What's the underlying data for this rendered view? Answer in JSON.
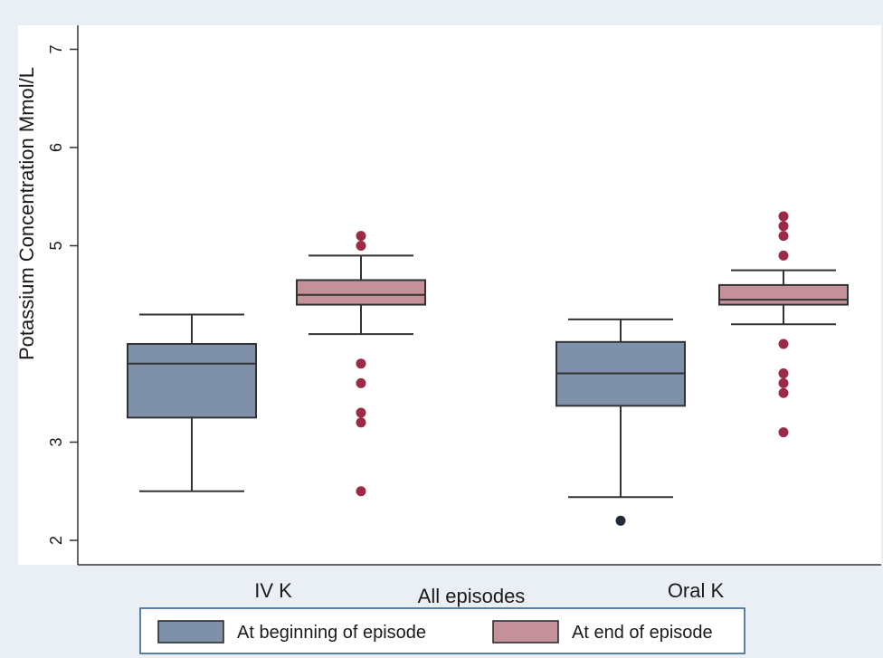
{
  "chart_data": {
    "type": "box",
    "ylabel": "Potassium Concentration Mmol/L",
    "xlabel": "All episodes",
    "ylim": [
      1.9,
      7.3
    ],
    "yticks": [
      2,
      3,
      5,
      6,
      7
    ],
    "categories": [
      "IV K",
      "Oral K"
    ],
    "grid": false,
    "legend_position": "bottom",
    "series": [
      {
        "name": "At beginning of episode",
        "color": "#7f91aa",
        "boxes": [
          {
            "category": "IV K",
            "whisker_low": 2.5,
            "q1": 3.25,
            "median": 3.8,
            "q3": 4.0,
            "whisker_high": 4.3,
            "outliers": []
          },
          {
            "category": "Oral K",
            "whisker_low": 2.44,
            "q1": 3.37,
            "median": 3.7,
            "q3": 4.02,
            "whisker_high": 4.25,
            "outliers": [
              2.2
            ]
          }
        ]
      },
      {
        "name": "At end of episode",
        "color": "#c4909a",
        "boxes": [
          {
            "category": "IV K",
            "whisker_low": 4.1,
            "q1": 4.4,
            "median": 4.5,
            "q3": 4.65,
            "whisker_high": 4.9,
            "outliers": [
              5.1,
              5.0,
              3.8,
              3.6,
              3.3,
              3.2,
              2.5
            ]
          },
          {
            "category": "Oral K",
            "whisker_low": 4.2,
            "q1": 4.4,
            "median": 4.45,
            "q3": 4.6,
            "whisker_high": 4.75,
            "outliers": [
              5.3,
              5.2,
              5.1,
              4.9,
              4.0,
              3.7,
              3.6,
              3.5,
              3.1
            ]
          }
        ]
      }
    ],
    "outlier_colors": {
      "At beginning of episode": "#232b3b",
      "At end of episode": "#9b2a45"
    }
  }
}
